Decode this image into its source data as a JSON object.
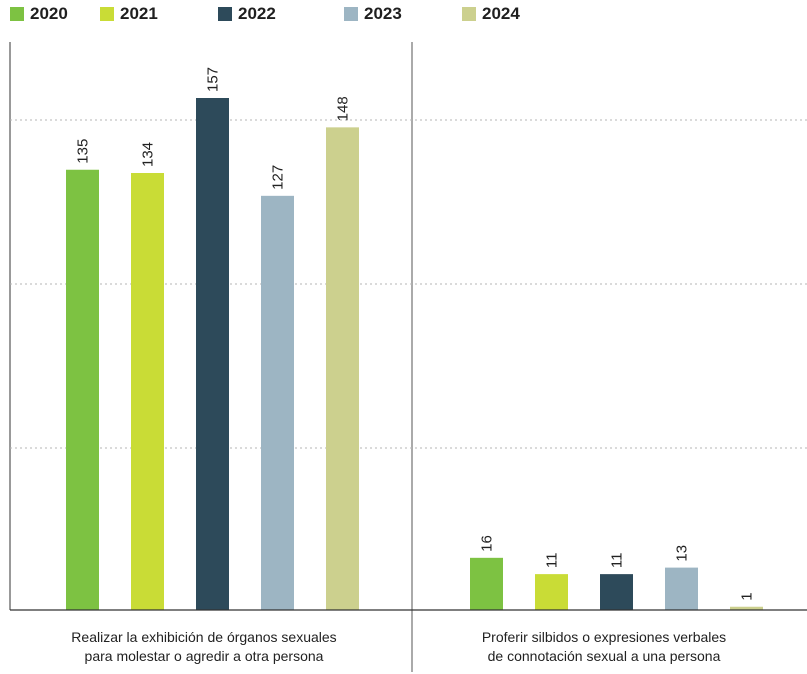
{
  "chart_data": {
    "type": "bar",
    "categories": [
      [
        "Realizar la exhibición de órganos sexuales",
        "para molestar o agredir a otra persona"
      ],
      [
        "Proferir silbidos o expresiones verbales",
        "de connotación sexual a una persona"
      ]
    ],
    "series": [
      {
        "name": "2020",
        "color": "#7dc242",
        "values": [
          135,
          16
        ]
      },
      {
        "name": "2021",
        "color": "#c9dc36",
        "values": [
          134,
          11
        ]
      },
      {
        "name": "2022",
        "color": "#2d4a5a",
        "values": [
          157,
          11
        ]
      },
      {
        "name": "2023",
        "color": "#9db5c3",
        "values": [
          127,
          13
        ]
      },
      {
        "name": "2024",
        "color": "#ccd08e",
        "values": [
          148,
          1
        ]
      }
    ],
    "ylim": [
      0,
      175
    ],
    "grid": true,
    "legend": "top-left"
  }
}
